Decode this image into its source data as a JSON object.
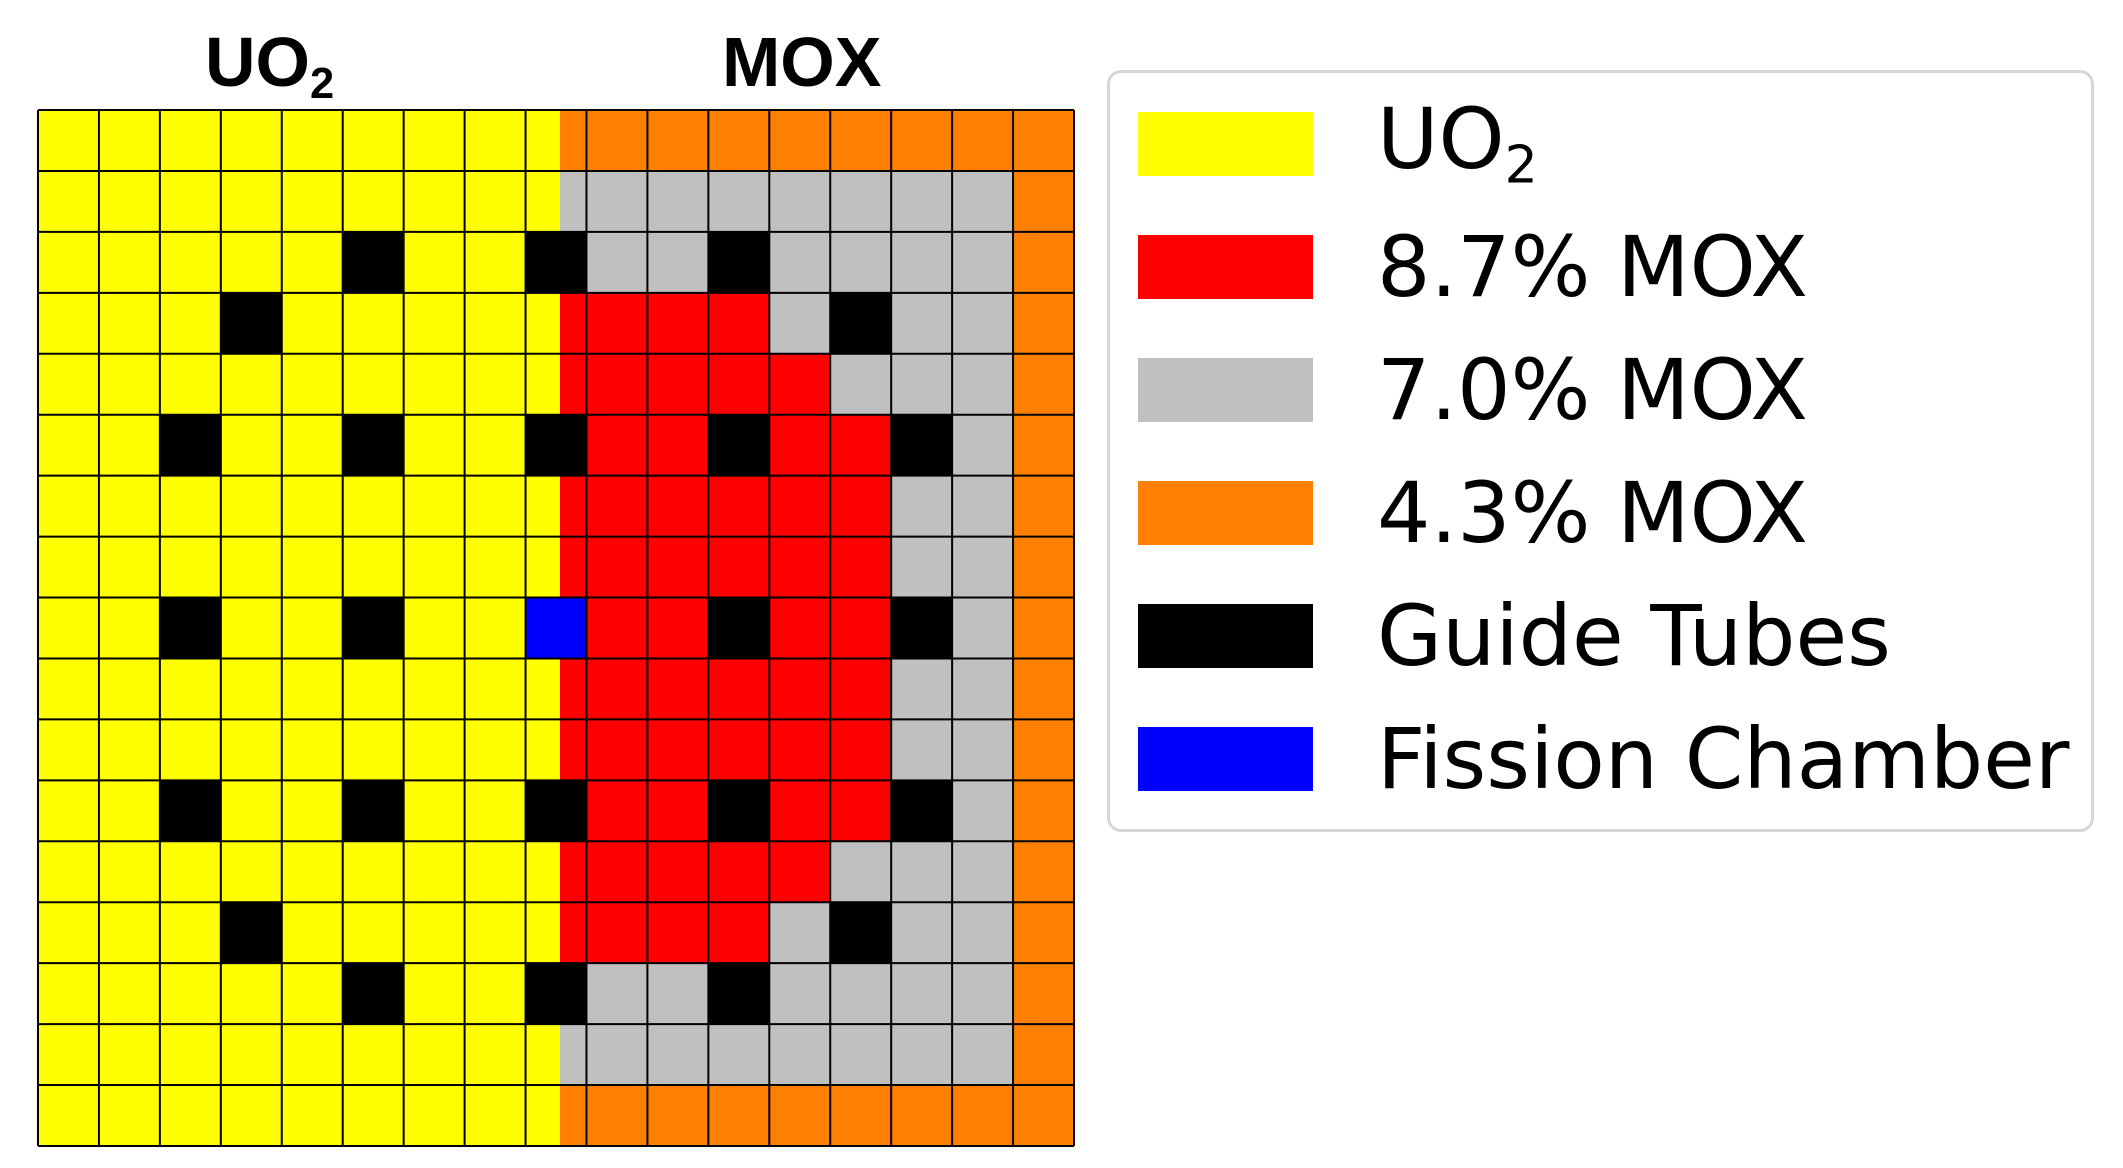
{
  "headers": {
    "left": {
      "base": "UO",
      "sub": "2"
    },
    "right": "MOX"
  },
  "legend": [
    {
      "key": "U",
      "base": "UO",
      "sub": "2",
      "color": "#ffff00"
    },
    {
      "key": "R",
      "label": "8.7% MOX",
      "color": "#ff0000"
    },
    {
      "key": "G",
      "label": "7.0% MOX",
      "color": "#c0c0c0"
    },
    {
      "key": "O",
      "label": "4.3% MOX",
      "color": "#ff8000"
    },
    {
      "key": "K",
      "label": "Guide Tubes",
      "color": "#000000"
    },
    {
      "key": "B",
      "label": "Fission Chamber",
      "color": "#0000ff"
    }
  ],
  "grid": {
    "rows": 17,
    "cols": 17,
    "cells": [
      "UUUUUUUUUOOOOOOOO",
      "UUUUUUUUUGGGGGGGO",
      "UUUUUKUUKGGKGGGGO",
      "UUUKUUUUURRRGKGGO",
      "UUUUUUUUURRRRGGGO",
      "UUKUUKUUKRRKRRKGO",
      "UUUUUUUUURRRRRGGO",
      "UUUUUUUUURRRRRGGO",
      "UUKUUKUUBRRKRRKGO",
      "UUUUUUUUURRRRRGGO",
      "UUUUUUUUURRRRRGGO",
      "UUKUUKUUKRRKRRKGO",
      "UUUUUUUUURRRRGGGO",
      "UUUKUUUUURRRGKGGO",
      "UUUUUKUUKGGKGGGGO",
      "UUUUUUUUUGGGGGGGO",
      "UUUUUUUUUOOOOOOOO"
    ]
  }
}
